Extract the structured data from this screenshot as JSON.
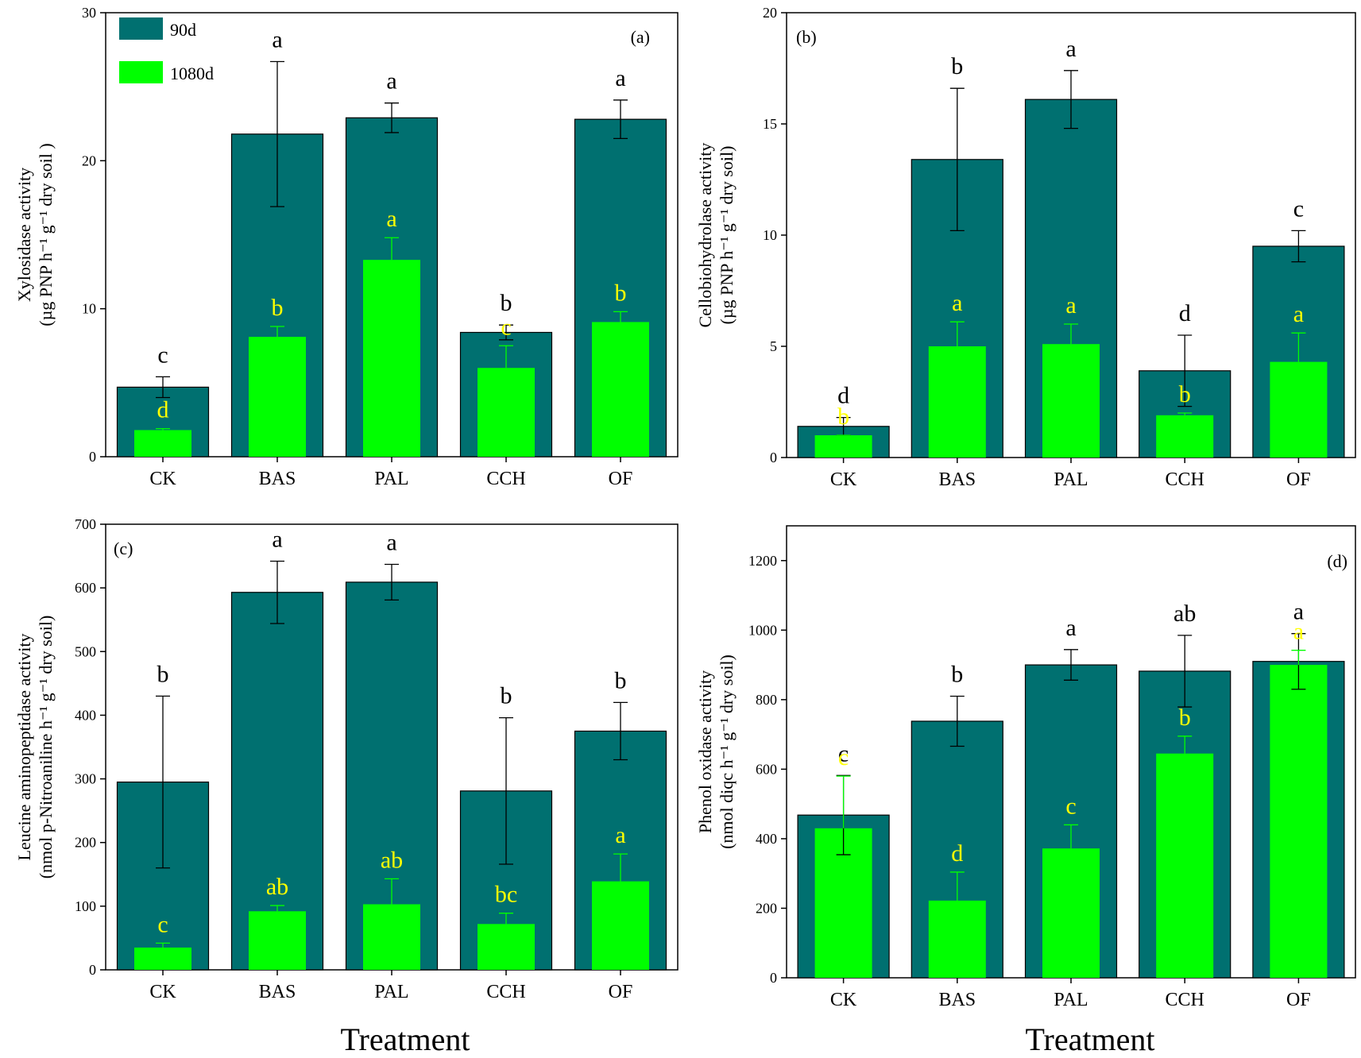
{
  "colors": {
    "series_90d": "#007070",
    "series_1080d": "#00ff00",
    "letters_1080d": "#ffff00",
    "axis": "#000000"
  },
  "legend": {
    "series": [
      "90d",
      "1080d"
    ]
  },
  "xlabel_common": "Treatment",
  "chart_data": [
    {
      "type": "bar",
      "panel_label": "(a)",
      "title": "",
      "ylabel_line1": "Xylosidase activity",
      "ylabel_line2": "(µg PNP h⁻¹ g⁻¹ dry soil )",
      "categories": [
        "CK",
        "BAS",
        "PAL",
        "CCH",
        "OF"
      ],
      "ylim": [
        0,
        30
      ],
      "yticks": [
        0,
        10,
        20,
        30
      ],
      "series": [
        {
          "name": "90d",
          "values": [
            4.7,
            21.8,
            22.9,
            8.4,
            22.8
          ],
          "errors": [
            0.7,
            4.9,
            1.0,
            0.5,
            1.3
          ],
          "letters": [
            "c",
            "a",
            "a",
            "b",
            "a"
          ]
        },
        {
          "name": "1080d",
          "values": [
            1.8,
            8.1,
            13.3,
            6.0,
            9.1
          ],
          "errors": [
            0.1,
            0.7,
            1.5,
            1.5,
            0.7
          ],
          "letters": [
            "d",
            "b",
            "a",
            "c",
            "b"
          ]
        }
      ]
    },
    {
      "type": "bar",
      "panel_label": "(b)",
      "title": "",
      "ylabel_line1": "Cellobiohydrolase activity",
      "ylabel_line2": "(µg PNP h⁻¹ g⁻¹ dry soil)",
      "categories": [
        "CK",
        "BAS",
        "PAL",
        "CCH",
        "OF"
      ],
      "ylim": [
        0,
        20
      ],
      "yticks": [
        0,
        5,
        10,
        15,
        20
      ],
      "series": [
        {
          "name": "90d",
          "values": [
            1.4,
            13.4,
            16.1,
            3.9,
            9.5
          ],
          "errors": [
            0.4,
            3.2,
            1.3,
            1.6,
            0.7
          ],
          "letters": [
            "d",
            "b",
            "a",
            "d",
            "c"
          ]
        },
        {
          "name": "1080d",
          "values": [
            1.0,
            5.0,
            5.1,
            1.9,
            4.3
          ],
          "errors": [
            0.0,
            1.1,
            0.9,
            0.1,
            1.3
          ],
          "letters": [
            "b",
            "a",
            "a",
            "b",
            "a"
          ]
        }
      ]
    },
    {
      "type": "bar",
      "panel_label": "(c)",
      "title": "",
      "ylabel_line1": "Leucine aminopeptidase activity",
      "ylabel_line2": "(nmol p-Nitroaniline h⁻¹ g⁻¹ dry soil)",
      "categories": [
        "CK",
        "BAS",
        "PAL",
        "CCH",
        "OF"
      ],
      "ylim": [
        0,
        700
      ],
      "yticks": [
        0,
        100,
        200,
        300,
        400,
        500,
        600,
        700
      ],
      "series": [
        {
          "name": "90d",
          "values": [
            295,
            593,
            609,
            281,
            375
          ],
          "errors": [
            135,
            49,
            28,
            115,
            45
          ],
          "letters": [
            "b",
            "a",
            "a",
            "b",
            "b"
          ]
        },
        {
          "name": "1080d",
          "values": [
            35,
            92,
            103,
            72,
            139
          ],
          "errors": [
            7,
            9,
            40,
            17,
            43
          ],
          "letters": [
            "c",
            "ab",
            "ab",
            "bc",
            "a"
          ]
        }
      ]
    },
    {
      "type": "bar",
      "panel_label": "(d)",
      "title": "",
      "ylabel_line1": "Phenol oxidase activity",
      "ylabel_line2": "(nmol diqc h⁻¹ g⁻¹ dry soil)",
      "categories": [
        "CK",
        "BAS",
        "PAL",
        "CCH",
        "OF"
      ],
      "ylim": [
        0,
        1300
      ],
      "yticks": [
        0,
        200,
        400,
        600,
        800,
        1000,
        1200
      ],
      "series": [
        {
          "name": "90d",
          "values": [
            468,
            738,
            900,
            882,
            910
          ],
          "errors": [
            114,
            72,
            44,
            103,
            80
          ],
          "letters": [
            "c",
            "b",
            "a",
            "ab",
            "a"
          ]
        },
        {
          "name": "1080d",
          "values": [
            430,
            222,
            372,
            645,
            900
          ],
          "errors": [
            150,
            82,
            68,
            50,
            42
          ],
          "letters": [
            "c",
            "d",
            "c",
            "b",
            "a"
          ]
        }
      ]
    }
  ]
}
